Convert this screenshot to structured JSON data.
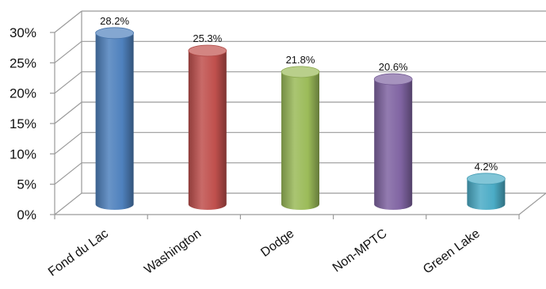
{
  "chart_data": {
    "type": "bar",
    "categories": [
      "Fond du Lac",
      "Washington",
      "Dodge",
      "Non-MPTC",
      "Green Lake"
    ],
    "values": [
      28.2,
      25.3,
      21.8,
      20.6,
      4.2
    ],
    "data_labels": [
      "28.2%",
      "25.3%",
      "21.8%",
      "20.6%",
      "4.2%"
    ],
    "title": "",
    "xlabel": "",
    "ylabel": "",
    "ylim": [
      0,
      30
    ],
    "yticks": [
      0,
      5,
      10,
      15,
      20,
      25,
      30
    ],
    "ytick_labels": [
      "0%",
      "5%",
      "10%",
      "15%",
      "20%",
      "25%",
      "30%"
    ],
    "grid": true,
    "legend": "none",
    "style": "3d-cylinder",
    "colors": [
      "#4f81bd",
      "#c0504d",
      "#9bbb59",
      "#8064a2",
      "#4bacc6"
    ]
  }
}
